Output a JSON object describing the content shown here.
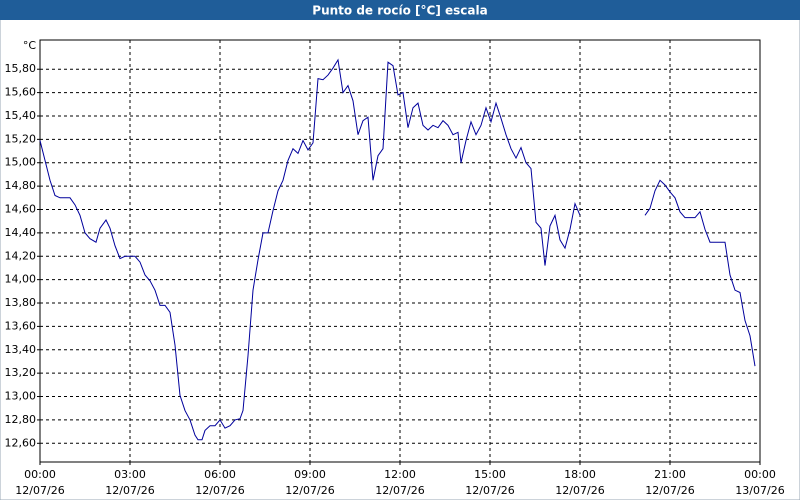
{
  "chart_data": {
    "type": "line",
    "title": "Punto de rocío [°C] escala",
    "y_unit": "°C",
    "xlim": [
      0,
      1440
    ],
    "ylim": [
      12.44,
      16.05
    ],
    "grid": true,
    "xticks": [
      {
        "value": 0,
        "label": "00:00",
        "date": "12/07/26"
      },
      {
        "value": 180,
        "label": "03:00",
        "date": "12/07/26"
      },
      {
        "value": 360,
        "label": "06:00",
        "date": "12/07/26"
      },
      {
        "value": 540,
        "label": "09:00",
        "date": "12/07/26"
      },
      {
        "value": 720,
        "label": "12:00",
        "date": "12/07/26"
      },
      {
        "value": 900,
        "label": "15:00",
        "date": "12/07/26"
      },
      {
        "value": 1080,
        "label": "18:00",
        "date": "12/07/26"
      },
      {
        "value": 1260,
        "label": "21:00",
        "date": "12/07/26"
      },
      {
        "value": 1440,
        "label": "00:00",
        "date": "13/07/26"
      }
    ],
    "yticks": [
      {
        "value": 12.6,
        "label": "12,60"
      },
      {
        "value": 12.8,
        "label": "12,80"
      },
      {
        "value": 13.0,
        "label": "13,00"
      },
      {
        "value": 13.2,
        "label": "13,20"
      },
      {
        "value": 13.4,
        "label": "13,40"
      },
      {
        "value": 13.6,
        "label": "13,60"
      },
      {
        "value": 13.8,
        "label": "13,80"
      },
      {
        "value": 14.0,
        "label": "14,00"
      },
      {
        "value": 14.2,
        "label": "14,20"
      },
      {
        "value": 14.4,
        "label": "14,40"
      },
      {
        "value": 14.6,
        "label": "14,60"
      },
      {
        "value": 14.8,
        "label": "14,80"
      },
      {
        "value": 15.0,
        "label": "15,00"
      },
      {
        "value": 15.2,
        "label": "15,20"
      },
      {
        "value": 15.4,
        "label": "15,40"
      },
      {
        "value": 15.6,
        "label": "15,60"
      },
      {
        "value": 15.8,
        "label": "15,80"
      }
    ],
    "series": [
      {
        "color": "#00009c",
        "x": [
          0,
          10,
          20,
          30,
          40,
          60,
          70,
          80,
          90,
          100,
          112,
          120,
          132,
          140,
          150,
          160,
          170,
          190,
          200,
          210,
          220,
          230,
          240,
          250,
          260,
          270,
          280,
          290,
          300,
          310,
          316,
          324,
          330,
          340,
          350,
          360,
          370,
          380,
          390,
          400,
          406,
          416,
          426,
          436,
          446,
          456,
          466,
          476,
          486,
          496,
          506,
          516,
          526,
          536,
          546,
          556,
          566,
          576,
          586,
          596,
          606,
          616,
          626,
          636,
          646,
          656,
          666,
          676,
          686,
          696,
          706,
          716,
          726,
          736,
          746,
          756,
          766,
          776,
          786,
          796,
          806,
          816,
          826,
          836,
          842,
          852,
          862,
          872,
          882,
          892,
          902,
          912,
          922,
          932,
          942,
          952,
          962,
          972,
          982,
          992,
          1002,
          1010,
          1020,
          1030,
          1040,
          1050,
          1060,
          1070,
          1080,
          1150,
          1210,
          1220,
          1230,
          1240,
          1250,
          1260,
          1270,
          1280,
          1290,
          1300,
          1310,
          1320,
          1330,
          1340,
          1350,
          1370,
          1380,
          1390,
          1400,
          1410,
          1420,
          1430
        ],
        "values": [
          15.19,
          15.02,
          14.85,
          14.72,
          14.7,
          14.7,
          14.64,
          14.55,
          14.4,
          14.35,
          14.32,
          14.44,
          14.51,
          14.44,
          14.29,
          14.18,
          14.2,
          14.2,
          14.15,
          14.04,
          13.99,
          13.91,
          13.78,
          13.78,
          13.72,
          13.44,
          13.01,
          12.88,
          12.8,
          12.67,
          12.63,
          12.63,
          12.71,
          12.75,
          12.75,
          12.8,
          12.73,
          12.75,
          12.8,
          12.81,
          12.88,
          13.35,
          13.91,
          14.17,
          14.4,
          14.4,
          14.59,
          14.76,
          14.85,
          15.02,
          15.12,
          15.08,
          15.19,
          15.11,
          15.17,
          15.72,
          15.71,
          15.75,
          15.81,
          15.88,
          15.6,
          15.66,
          15.53,
          15.24,
          15.36,
          15.39,
          14.85,
          15.06,
          15.12,
          15.86,
          15.83,
          15.58,
          15.6,
          15.3,
          15.47,
          15.51,
          15.32,
          15.28,
          15.32,
          15.3,
          15.36,
          15.32,
          15.24,
          15.26,
          15.0,
          15.19,
          15.35,
          15.24,
          15.32,
          15.47,
          15.35,
          15.51,
          15.38,
          15.24,
          15.12,
          15.04,
          15.13,
          15.0,
          14.95,
          14.49,
          14.44,
          14.12,
          14.46,
          14.55,
          14.34,
          14.27,
          14.43,
          14.65,
          14.55,
          null,
          14.55,
          14.61,
          14.76,
          14.85,
          14.81,
          14.75,
          14.7,
          14.58,
          14.53,
          14.53,
          14.53,
          14.58,
          14.43,
          14.32,
          14.32,
          14.32,
          14.04,
          13.91,
          13.89,
          13.65,
          13.52,
          13.26
        ]
      }
    ]
  }
}
